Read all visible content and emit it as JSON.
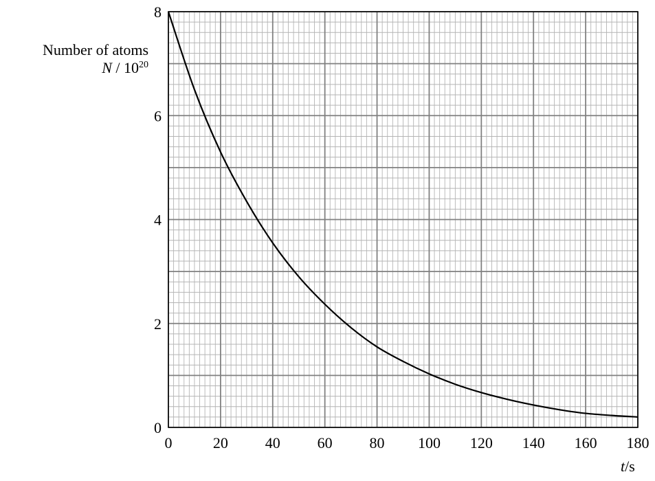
{
  "chart_data": {
    "type": "line",
    "title": "",
    "ylabel": {
      "line1": "Number of atoms",
      "symbol": "N",
      "divider": " / 10",
      "exponent": "20"
    },
    "xlabel": {
      "symbol": "t",
      "unit": "/s"
    },
    "xlim": [
      0,
      180
    ],
    "ylim": [
      0,
      8
    ],
    "xticks": [
      0,
      20,
      40,
      60,
      80,
      100,
      120,
      140,
      160,
      180
    ],
    "yticks": [
      0,
      2,
      4,
      6,
      8
    ],
    "grid": true,
    "series": [
      {
        "x": [
          0,
          10,
          20,
          30,
          40,
          50,
          60,
          70,
          80,
          90,
          100,
          110,
          120,
          130,
          140,
          150,
          160,
          170,
          180
        ],
        "y": [
          8.0,
          6.5,
          5.3,
          4.35,
          3.55,
          2.9,
          2.37,
          1.92,
          1.55,
          1.27,
          1.03,
          0.83,
          0.67,
          0.54,
          0.43,
          0.34,
          0.27,
          0.23,
          0.2
        ]
      }
    ]
  }
}
